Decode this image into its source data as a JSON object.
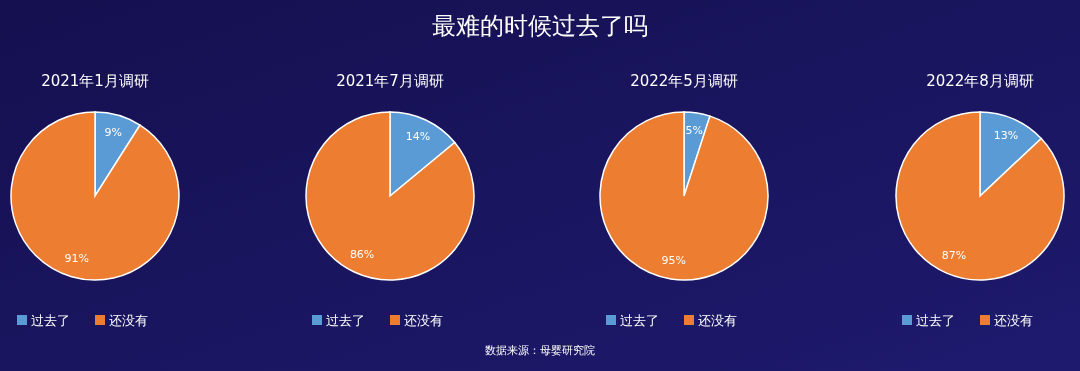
{
  "chart_data": [
    {
      "type": "other",
      "title": "最难的时候过去了吗",
      "annotations": [
        "数据来源：母婴研究院"
      ]
    },
    {
      "type": "pie",
      "title": "2021年1月调研",
      "categories": [
        "过去了",
        "还没有"
      ],
      "values": [
        9,
        91
      ],
      "colors": [
        "#5b9bd5",
        "#ed7d31"
      ],
      "value_labels": [
        "9%",
        "91%"
      ],
      "legend": "bottom"
    },
    {
      "type": "pie",
      "title": "2021年7月调研",
      "categories": [
        "过去了",
        "还没有"
      ],
      "values": [
        14,
        86
      ],
      "colors": [
        "#5b9bd5",
        "#ed7d31"
      ],
      "value_labels": [
        "14%",
        "86%"
      ],
      "legend": "bottom"
    },
    {
      "type": "pie",
      "title": "2022年5月调研",
      "categories": [
        "过去了",
        "还没有"
      ],
      "values": [
        5,
        95
      ],
      "colors": [
        "#5b9bd5",
        "#ed7d31"
      ],
      "value_labels": [
        "5%",
        "95%"
      ],
      "legend": "bottom"
    },
    {
      "type": "pie",
      "title": "2022年8月调研",
      "categories": [
        "过去了",
        "还没有"
      ],
      "values": [
        13,
        87
      ],
      "colors": [
        "#5b9bd5",
        "#ed7d31"
      ],
      "value_labels": [
        "13%",
        "87%"
      ],
      "legend": "bottom"
    }
  ]
}
